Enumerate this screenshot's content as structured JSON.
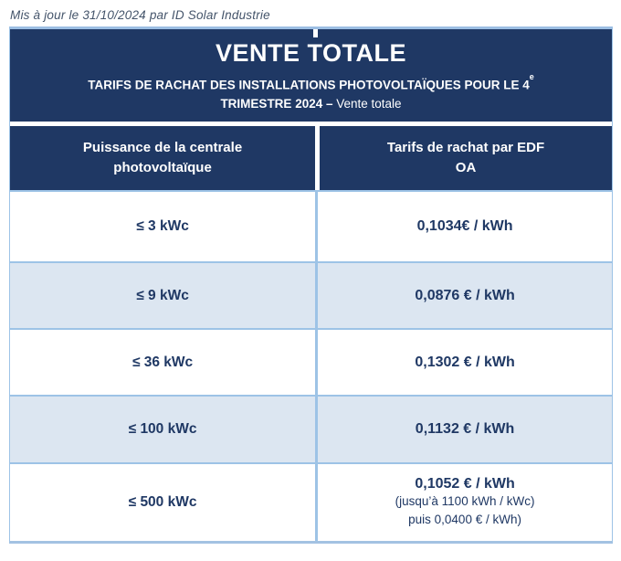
{
  "page": {
    "updated_note": "Mis à jour le 31/10/2024 par ID Solar Industrie"
  },
  "header": {
    "title": "VENTE TOTALE",
    "subtitle_line1": "TARIFS DE RACHAT DES INSTALLATIONS PHOTOVOLTAÏQUES POUR LE 4",
    "subtitle_superscript": "e",
    "subtitle_line2_bold": "TRIMESTRE 2024 – ",
    "subtitle_line2_regular": "Vente totale"
  },
  "table": {
    "columns": [
      "Puissance de la centrale photovoltaïque",
      "Tarifs de rachat par EDF OA"
    ],
    "rows": [
      {
        "power": "≤ 3 kWc",
        "tariff": "0,1034€ / kWh",
        "notes": []
      },
      {
        "power": "≤ 9 kWc",
        "tariff": "0,0876 € / kWh",
        "notes": []
      },
      {
        "power": "≤ 36 kWc",
        "tariff": "0,1302 € / kWh",
        "notes": []
      },
      {
        "power": "≤ 100 kWc",
        "tariff": "0,1132 € / kWh",
        "notes": []
      },
      {
        "power": "≤ 500 kWc",
        "tariff": "0,1052 € / kWh",
        "notes": [
          "(jusqu’à 1100 kWh / kWc)",
          "puis 0,0400 € / kWh)"
        ]
      }
    ]
  },
  "chart_data": {
    "type": "table",
    "title": "VENTE TOTALE",
    "subtitle": "TARIFS DE RACHAT DES INSTALLATIONS PHOTOVOLTAÏQUES POUR LE 4e TRIMESTRE 2024 – Vente totale",
    "columns": [
      "Puissance de la centrale photovoltaïque",
      "Tarifs de rachat par EDF OA"
    ],
    "rows": [
      [
        "≤ 3 kWc",
        "0,1034€ / kWh"
      ],
      [
        "≤ 9 kWc",
        "0,0876 € / kWh"
      ],
      [
        "≤ 36 kWc",
        "0,1302 € / kWh"
      ],
      [
        "≤ 100 kWc",
        "0,1132 € / kWh"
      ],
      [
        "≤ 500 kWc",
        "0,1052 € / kWh (jusqu’à 1100 kWh / kWc) puis 0,0400 € / kWh)"
      ]
    ]
  },
  "colors": {
    "navy": "#1F3864",
    "row_alt": "#DCE6F1",
    "border": "#9DC3E6",
    "note_text": "#44546A"
  }
}
